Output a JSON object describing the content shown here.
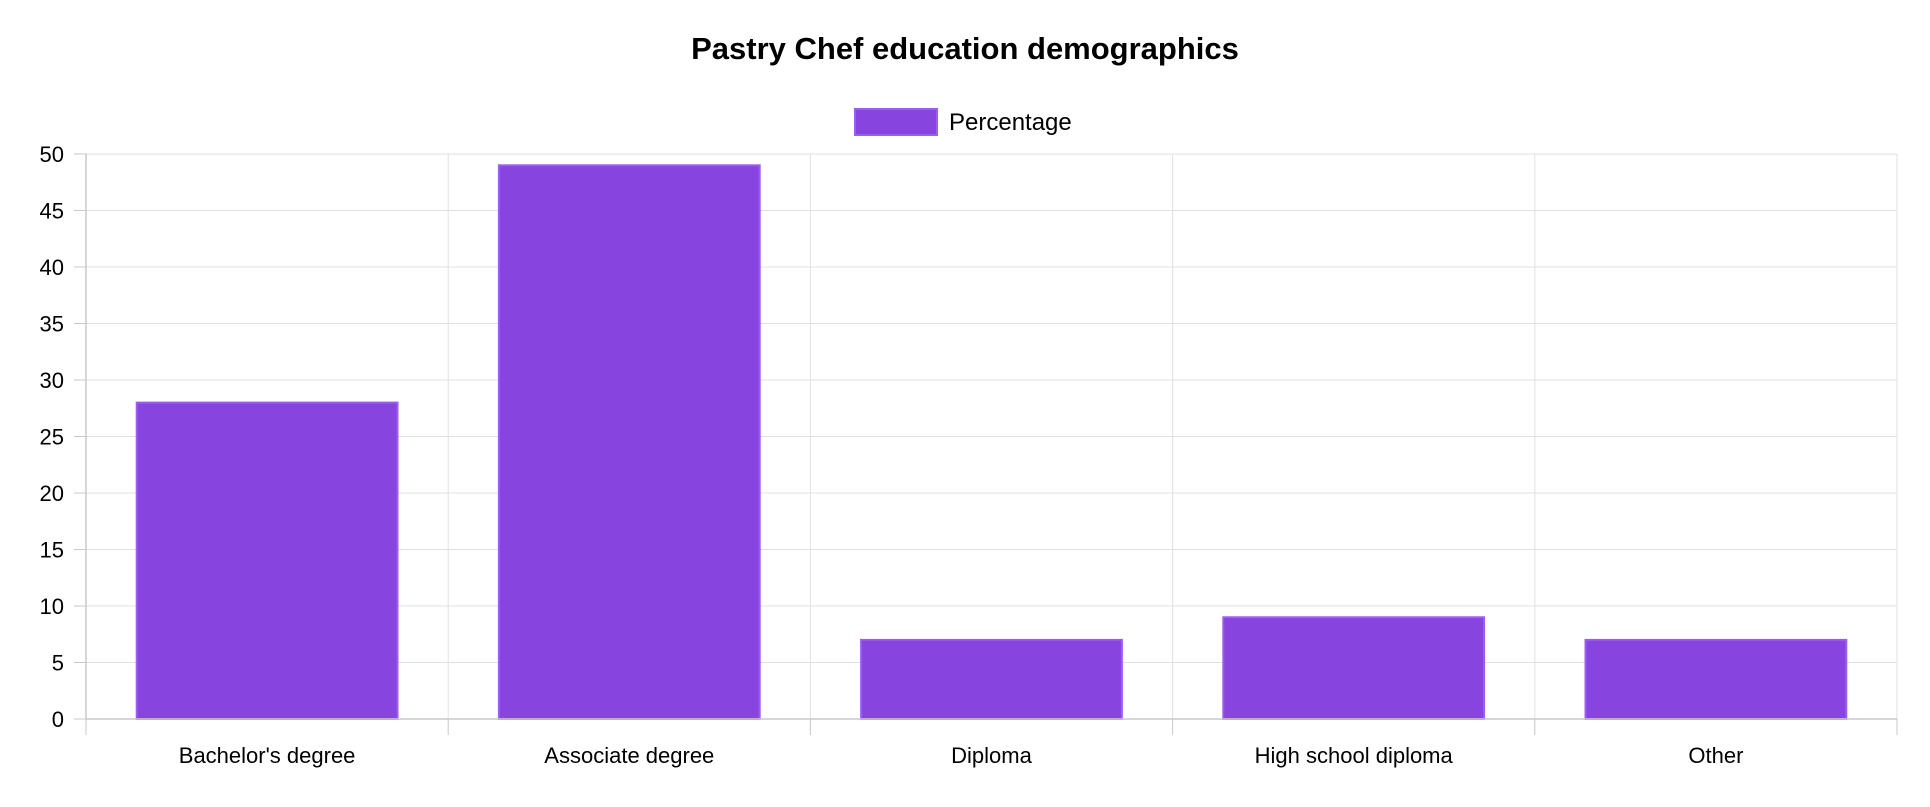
{
  "chart_data": {
    "type": "bar",
    "title": "Pastry Chef education demographics",
    "xlabel": "",
    "ylabel": "",
    "categories": [
      "Bachelor's degree",
      "Associate degree",
      "Diploma",
      "High school diploma",
      "Other"
    ],
    "series": [
      {
        "name": "Percentage",
        "values": [
          28,
          49,
          7,
          9,
          7
        ],
        "color": "#8844df",
        "border_color": "#9b5cf0"
      }
    ],
    "ylim": [
      0,
      50
    ],
    "y_ticks": [
      "0",
      "5",
      "10",
      "15",
      "20",
      "25",
      "30",
      "35",
      "40",
      "45",
      "50"
    ],
    "grid": true,
    "legend_position": "top-center",
    "grid_color": "#e0e0e0",
    "axis_color": "#c8c8c8"
  }
}
